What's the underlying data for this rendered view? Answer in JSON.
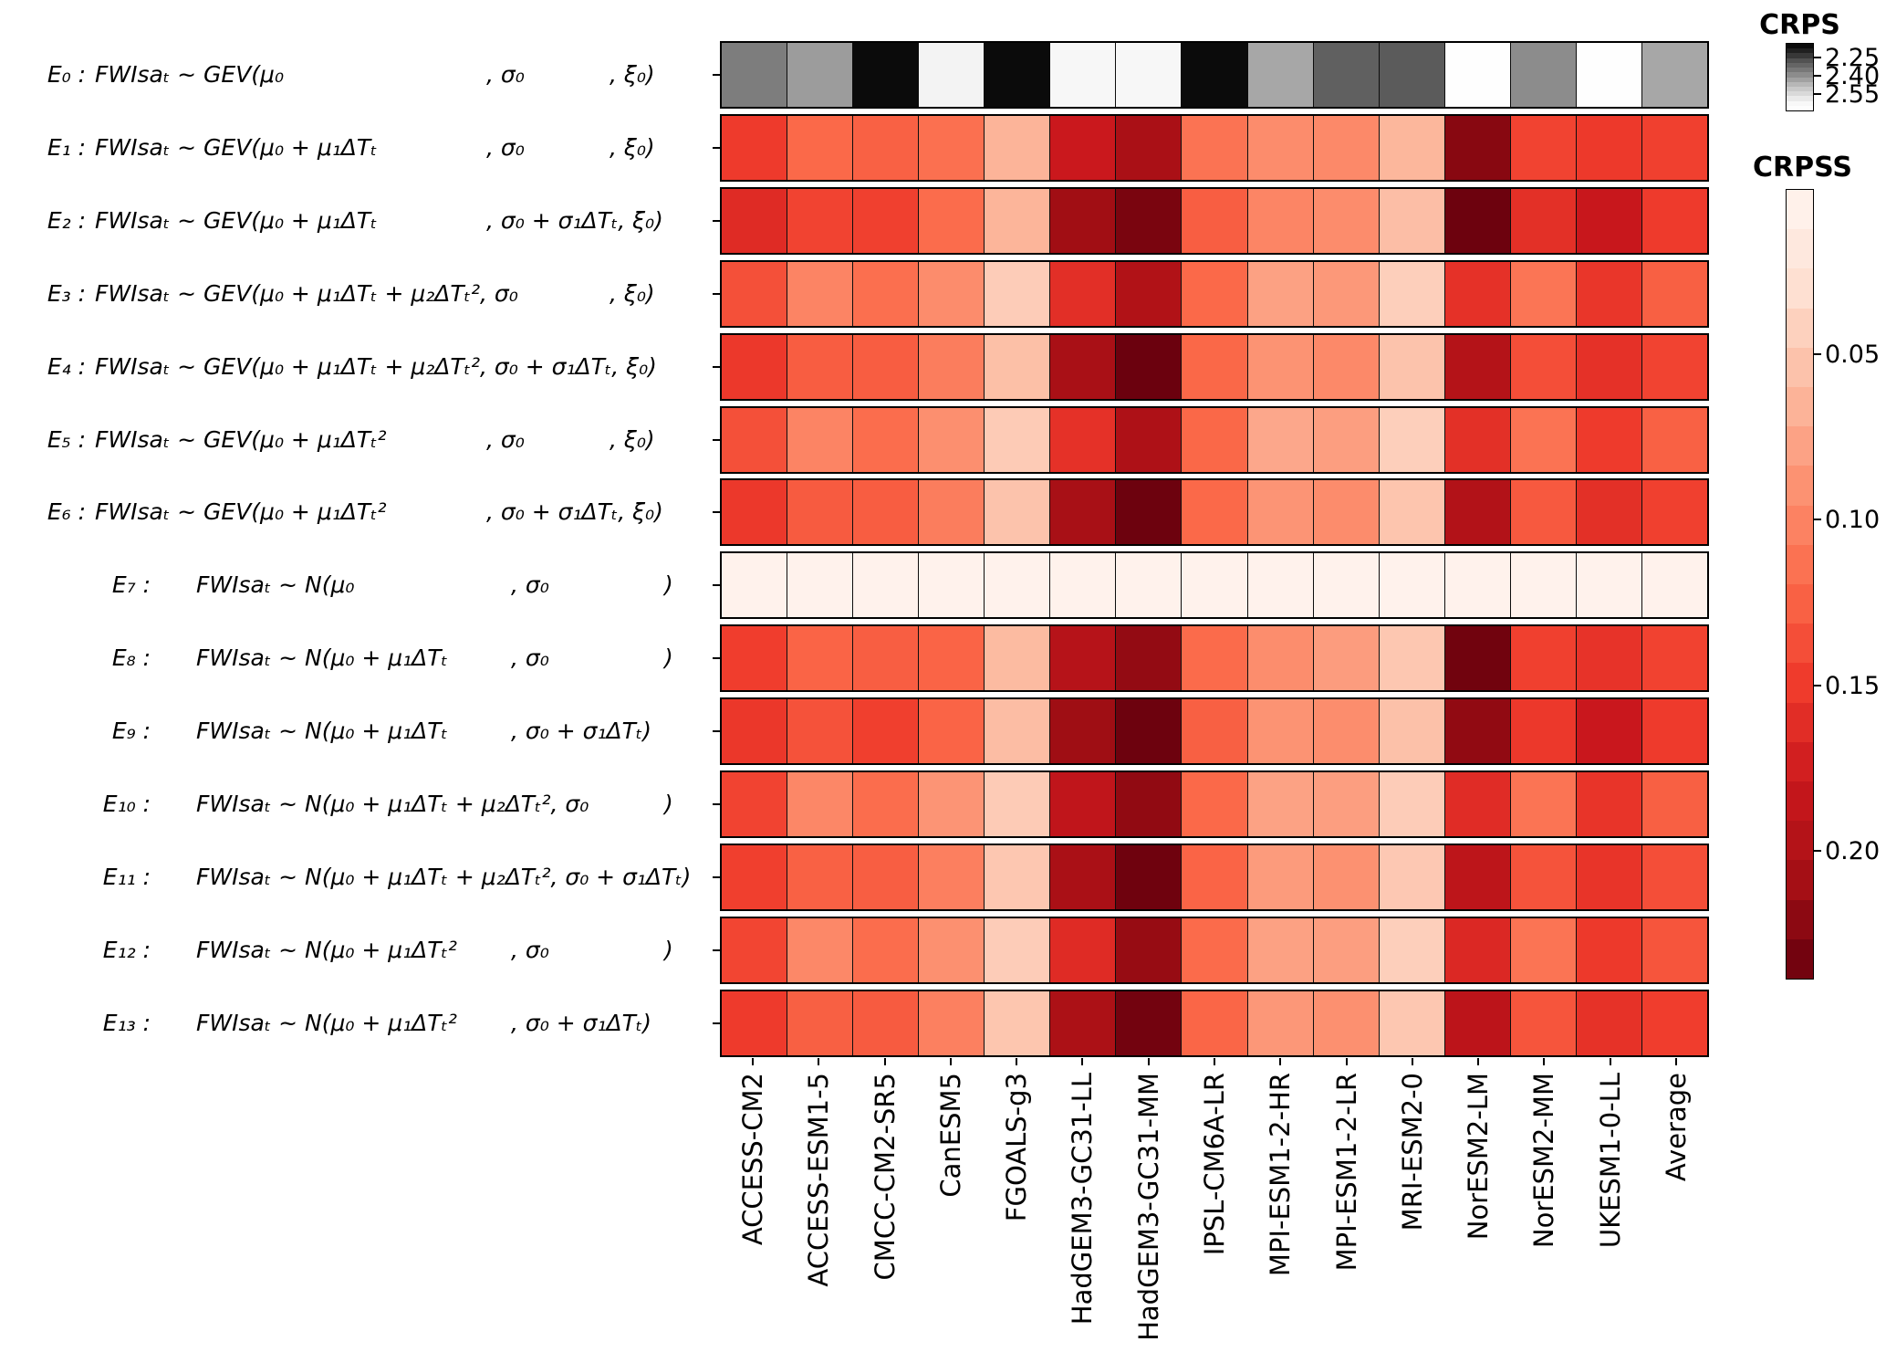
{
  "figure": {
    "kind": "model-evaluation heatmap",
    "background": "#ffffff"
  },
  "chart_data": {
    "type": "heatmap",
    "columns": [
      "ACCESS-CM2",
      "ACCESS-ESM1-5",
      "CMCC-CM2-SR5",
      "CanESM5",
      "FGOALS-g3",
      "HadGEM3-GC31-LL",
      "HadGEM3-GC31-MM",
      "IPSL-CM6A-LR",
      "MPI-ESM1-2-HR",
      "MPI-ESM1-2-LR",
      "MRI-ESM2-0",
      "NorESM2-LM",
      "NorESM2-MM",
      "UKESM1-0-LL",
      "Average"
    ],
    "rows": [
      {
        "id": "E0",
        "e": "E₀ :",
        "mu": "FWIsaₜ ~ GEV(μ₀",
        "sig": ", σ₀",
        "xi": ", ξ₀)",
        "dist": "gev",
        "metric": "CRPS",
        "values": [
          2.36,
          2.42,
          2.15,
          2.61,
          2.15,
          2.62,
          2.62,
          2.15,
          2.44,
          2.3,
          2.29,
          2.68,
          2.39,
          2.68,
          2.44
        ]
      },
      {
        "id": "E1",
        "e": "E₁ :",
        "mu": "FWIsaₜ ~ GEV(μ₀ + μ₁ΔTₜ",
        "sig": ", σ₀",
        "xi": ", ξ₀)",
        "dist": "gev",
        "metric": "CRPSS",
        "values": [
          0.15,
          0.12,
          0.125,
          0.115,
          0.065,
          0.18,
          0.205,
          0.113,
          0.094,
          0.096,
          0.063,
          0.223,
          0.144,
          0.151,
          0.146
        ]
      },
      {
        "id": "E2",
        "e": "E₂ :",
        "mu": "FWIsaₜ ~ GEV(μ₀ + μ₁ΔTₜ",
        "sig": ", σ₀ + σ₁ΔTₜ, ξ₀)",
        "xi": "",
        "dist": "gev",
        "metric": "CRPSS",
        "values": [
          0.163,
          0.144,
          0.146,
          0.118,
          0.064,
          0.211,
          0.23,
          0.127,
          0.099,
          0.094,
          0.057,
          0.236,
          0.159,
          0.182,
          0.15
        ]
      },
      {
        "id": "E3",
        "e": "E₃ :",
        "mu": "FWIsaₜ ~ GEV(μ₀ + μ₁ΔTₜ + μ₂ΔTₜ², σ₀",
        "sig": "",
        "xi": ", ξ₀)",
        "dist": "gev",
        "metric": "CRPSS",
        "values": [
          0.136,
          0.1,
          0.116,
          0.094,
          0.046,
          0.16,
          0.2,
          0.12,
          0.079,
          0.085,
          0.044,
          0.158,
          0.111,
          0.154,
          0.126
        ]
      },
      {
        "id": "E4",
        "e": "E₄ :",
        "mu": "FWIsaₜ ~ GEV(μ₀ + μ₁ΔTₜ + μ₂ΔTₜ², σ₀ + σ₁ΔTₜ, ξ₀)",
        "sig": "",
        "xi": "",
        "dist": "gev",
        "metric": "CRPSS",
        "values": [
          0.152,
          0.128,
          0.128,
          0.105,
          0.056,
          0.206,
          0.237,
          0.121,
          0.089,
          0.096,
          0.053,
          0.197,
          0.137,
          0.158,
          0.144
        ]
      },
      {
        "id": "E5",
        "e": "E₅ :",
        "mu": "FWIsaₜ ~ GEV(μ₀ + μ₁ΔTₜ²",
        "sig": ", σ₀",
        "xi": ", ξ₀)",
        "dist": "gev",
        "metric": "CRPSS",
        "values": [
          0.136,
          0.1,
          0.117,
          0.092,
          0.047,
          0.158,
          0.202,
          0.121,
          0.074,
          0.081,
          0.044,
          0.159,
          0.113,
          0.15,
          0.125
        ]
      },
      {
        "id": "E6",
        "e": "E₆ :",
        "mu": "FWIsaₜ ~ GEV(μ₀ + μ₁ΔTₜ²",
        "sig": ", σ₀ + σ₁ΔTₜ, ξ₀)",
        "xi": "",
        "dist": "gev",
        "metric": "CRPSS",
        "values": [
          0.152,
          0.129,
          0.128,
          0.105,
          0.053,
          0.207,
          0.236,
          0.12,
          0.088,
          0.094,
          0.052,
          0.199,
          0.13,
          0.159,
          0.146
        ]
      },
      {
        "id": "E7",
        "e": "E₇ :",
        "mu": "FWIsaₜ ~ N(μ₀",
        "sig": ", σ₀",
        "xi": ")",
        "dist": "norm",
        "metric": "CRPSS",
        "values": [
          0.004,
          0.004,
          0.004,
          0.004,
          0.004,
          0.004,
          0.004,
          0.004,
          0.004,
          0.004,
          0.004,
          0.004,
          0.004,
          0.004,
          0.004
        ]
      },
      {
        "id": "E8",
        "e": "E₈ :",
        "mu": "FWIsaₜ ~ N(μ₀ + μ₁ΔTₜ",
        "sig": ", σ₀",
        "xi": ")",
        "dist": "norm",
        "metric": "CRPSS",
        "values": [
          0.148,
          0.123,
          0.127,
          0.123,
          0.06,
          0.196,
          0.218,
          0.119,
          0.093,
          0.082,
          0.05,
          0.234,
          0.146,
          0.156,
          0.145
        ]
      },
      {
        "id": "E9",
        "e": "E₉ :",
        "mu": "FWIsaₜ ~ N(μ₀ + μ₁ΔTₜ",
        "sig": ", σ₀ + σ₁ΔTₜ)",
        "xi": "",
        "dist": "norm",
        "metric": "CRPSS",
        "values": [
          0.153,
          0.135,
          0.147,
          0.123,
          0.058,
          0.212,
          0.236,
          0.126,
          0.089,
          0.093,
          0.055,
          0.219,
          0.152,
          0.181,
          0.15
        ]
      },
      {
        "id": "E10",
        "e": "E₁₀ :",
        "mu": "FWIsaₜ ~ N(μ₀ + μ₁ΔTₜ + μ₂ΔTₜ², σ₀",
        "sig": "",
        "xi": ")",
        "dist": "norm",
        "metric": "CRPSS",
        "values": [
          0.144,
          0.098,
          0.117,
          0.088,
          0.047,
          0.188,
          0.219,
          0.12,
          0.078,
          0.081,
          0.046,
          0.162,
          0.112,
          0.155,
          0.126
        ]
      },
      {
        "id": "E11",
        "e": "E₁₁ :",
        "mu": "FWIsaₜ ~ N(μ₀ + μ₁ΔTₜ + μ₂ΔTₜ², σ₀ + σ₁ΔTₜ)",
        "sig": "",
        "xi": "",
        "dist": "norm",
        "metric": "CRPSS",
        "values": [
          0.147,
          0.125,
          0.127,
          0.104,
          0.05,
          0.205,
          0.235,
          0.123,
          0.083,
          0.09,
          0.049,
          0.19,
          0.134,
          0.155,
          0.137
        ]
      },
      {
        "id": "E12",
        "e": "E₁₂ :",
        "mu": "FWIsaₜ ~ N(μ₀ + μ₁ΔTₜ²",
        "sig": ", σ₀",
        "xi": ")",
        "dist": "norm",
        "metric": "CRPSS",
        "values": [
          0.143,
          0.097,
          0.117,
          0.091,
          0.046,
          0.163,
          0.216,
          0.119,
          0.079,
          0.081,
          0.044,
          0.166,
          0.112,
          0.151,
          0.133
        ]
      },
      {
        "id": "E13",
        "e": "E₁₃ :",
        "mu": "FWIsaₜ ~ N(μ₀ + μ₁ΔTₜ²",
        "sig": ", σ₀ + σ₁ΔTₜ)",
        "xi": "",
        "dist": "norm",
        "metric": "CRPSS",
        "values": [
          0.15,
          0.126,
          0.129,
          0.103,
          0.051,
          0.204,
          0.233,
          0.122,
          0.086,
          0.091,
          0.05,
          0.191,
          0.133,
          0.157,
          0.148
        ]
      }
    ],
    "colorbars": [
      {
        "title": "CRPS",
        "palette": "greys_dark_is_low",
        "vmin": 2.13,
        "vmax": 2.69,
        "tick_labels": [
          "2.25",
          "2.40",
          "2.55"
        ],
        "tick_values": [
          2.25,
          2.4,
          2.55
        ],
        "steps": 14
      },
      {
        "title": "CRPSS",
        "palette": "reds_dark_is_high",
        "vmin": 0.0,
        "vmax": 0.239,
        "tick_labels": [
          "0.05",
          "0.10",
          "0.15",
          "0.20"
        ],
        "tick_values": [
          0.05,
          0.1,
          0.15,
          0.2
        ],
        "steps": 20
      }
    ],
    "layout_hints": {
      "grid": "off",
      "row_axis": "model formulations E0–E13",
      "col_axis": "CMIP6 climate models",
      "value_axis_inverted": true
    }
  },
  "colors": {
    "cell_border": "#0d0d0d",
    "row_frame": "#000000",
    "reds_anchors": [
      "#fff5f0",
      "#fee0d2",
      "#fcbba1",
      "#fc9272",
      "#fb6a4a",
      "#ef3b2c",
      "#cb181d",
      "#a50f15",
      "#67000d"
    ],
    "greys_anchors": [
      "#ffffff",
      "#f7f7f7",
      "#d9d9d9",
      "#bdbdbd",
      "#969696",
      "#737373",
      "#525252",
      "#252525",
      "#000000"
    ]
  }
}
